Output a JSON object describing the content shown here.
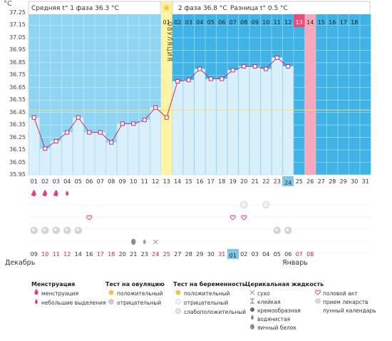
{
  "unit": "°C",
  "header": {
    "phase1": "Средняя t° 1 фаза 36.3 °C",
    "phase2": "2 фаза 36.8 °C",
    "diff": "Разница t° 0.5 °C",
    "sun_icon": "sun-icon"
  },
  "ovulation_label": "ОВУЛЯЦИЯ",
  "chart_data": {
    "type": "line",
    "x": [
      "01",
      "02",
      "03",
      "04",
      "05",
      "06",
      "07",
      "08",
      "09",
      "10",
      "11",
      "12",
      "13",
      "14",
      "15",
      "16",
      "17",
      "18",
      "19",
      "20",
      "21",
      "22",
      "23",
      "24",
      "25",
      "26",
      "27",
      "28",
      "29",
      "30",
      "31"
    ],
    "series": [
      {
        "values": [
          36.41,
          36.16,
          36.22,
          36.29,
          36.41,
          36.29,
          36.29,
          36.21,
          36.36,
          36.36,
          36.39,
          36.49,
          36.41,
          36.7,
          36.71,
          36.8,
          36.72,
          36.72,
          36.79,
          36.82,
          36.82,
          36.8,
          36.89,
          36.82,
          null,
          null,
          null,
          null,
          null,
          null,
          null
        ]
      }
    ],
    "ylim": [
      35.95,
      37.25
    ],
    "yticks": [
      "37.25",
      "37.15",
      "37.05",
      "36.95",
      "36.85",
      "36.75",
      "36.65",
      "36.55",
      "36.45",
      "36.35",
      "36.25",
      "36.15",
      "36.05",
      "35.95"
    ],
    "coverline": 36.47,
    "ovulation_day": "13",
    "highlight_day": "24",
    "red_column_day": "26",
    "phase2_day_numbers": [
      "01",
      "02",
      "03",
      "04",
      "05",
      "06",
      "07",
      "08",
      "09",
      "10",
      "11",
      "12",
      "13",
      "14",
      "15",
      "16",
      "17",
      "18"
    ],
    "phase2_red_number": "13",
    "grid": true
  },
  "symbol_rows": {
    "menstruation_days": [
      "01",
      "02",
      "03",
      "04"
    ],
    "heavy_days": [
      "01",
      "02",
      "03"
    ],
    "light_days": [
      "04"
    ],
    "intercourse_days": [
      "06",
      "19",
      "20"
    ],
    "pregnancy_test_days": [
      "20",
      "22"
    ],
    "pill_days": [
      "01",
      "02",
      "03",
      "04",
      "05",
      "23",
      "24"
    ],
    "egg_white_days": [
      "10"
    ],
    "watery_days": [
      "11"
    ],
    "dry_days": [
      "12"
    ]
  },
  "dates": {
    "row": [
      "09",
      "10",
      "11",
      "12",
      "14",
      "16",
      "17",
      "18",
      "20",
      "21",
      "23",
      "24",
      "25",
      "27",
      "28",
      "29",
      "30",
      "31",
      "01",
      "02",
      "03",
      "04",
      "05",
      "06",
      "07",
      "08"
    ],
    "red": [
      "10",
      "11",
      "12",
      "17",
      "18",
      "24",
      "25",
      "31",
      "07",
      "08"
    ],
    "highlight": "01"
  },
  "months": {
    "left": "Декабрь",
    "right": "Январь"
  },
  "legend": {
    "menstruation": {
      "title": "Менструация",
      "items": [
        "менструация",
        "небольшие выделения"
      ]
    },
    "ovulation_test": {
      "title": "Тест на овуляцию",
      "items": [
        "положительный",
        "отрицательный"
      ]
    },
    "pregnancy_test": {
      "title": "Тест на беременность",
      "items": [
        "положительный",
        "отрицательный",
        "слабоположительный"
      ]
    },
    "cervical": {
      "title": "Церикальная жидкость",
      "items": [
        "сухо",
        "клейкая",
        "кремообразная",
        "водянистая",
        "яичный белок"
      ]
    },
    "other": {
      "items": [
        "половой акт",
        "прием лекарств",
        "лунный календарь"
      ]
    }
  },
  "colors": {
    "plot_bg": "#3fb3e6",
    "phase1_bg": "#8fd4f2",
    "bar_fill": "#d9f0fb",
    "line": "#c4306c",
    "ovulation": "#fff4a6",
    "red_col": "#f6a9bd",
    "highlight": "#7fc6ea"
  }
}
